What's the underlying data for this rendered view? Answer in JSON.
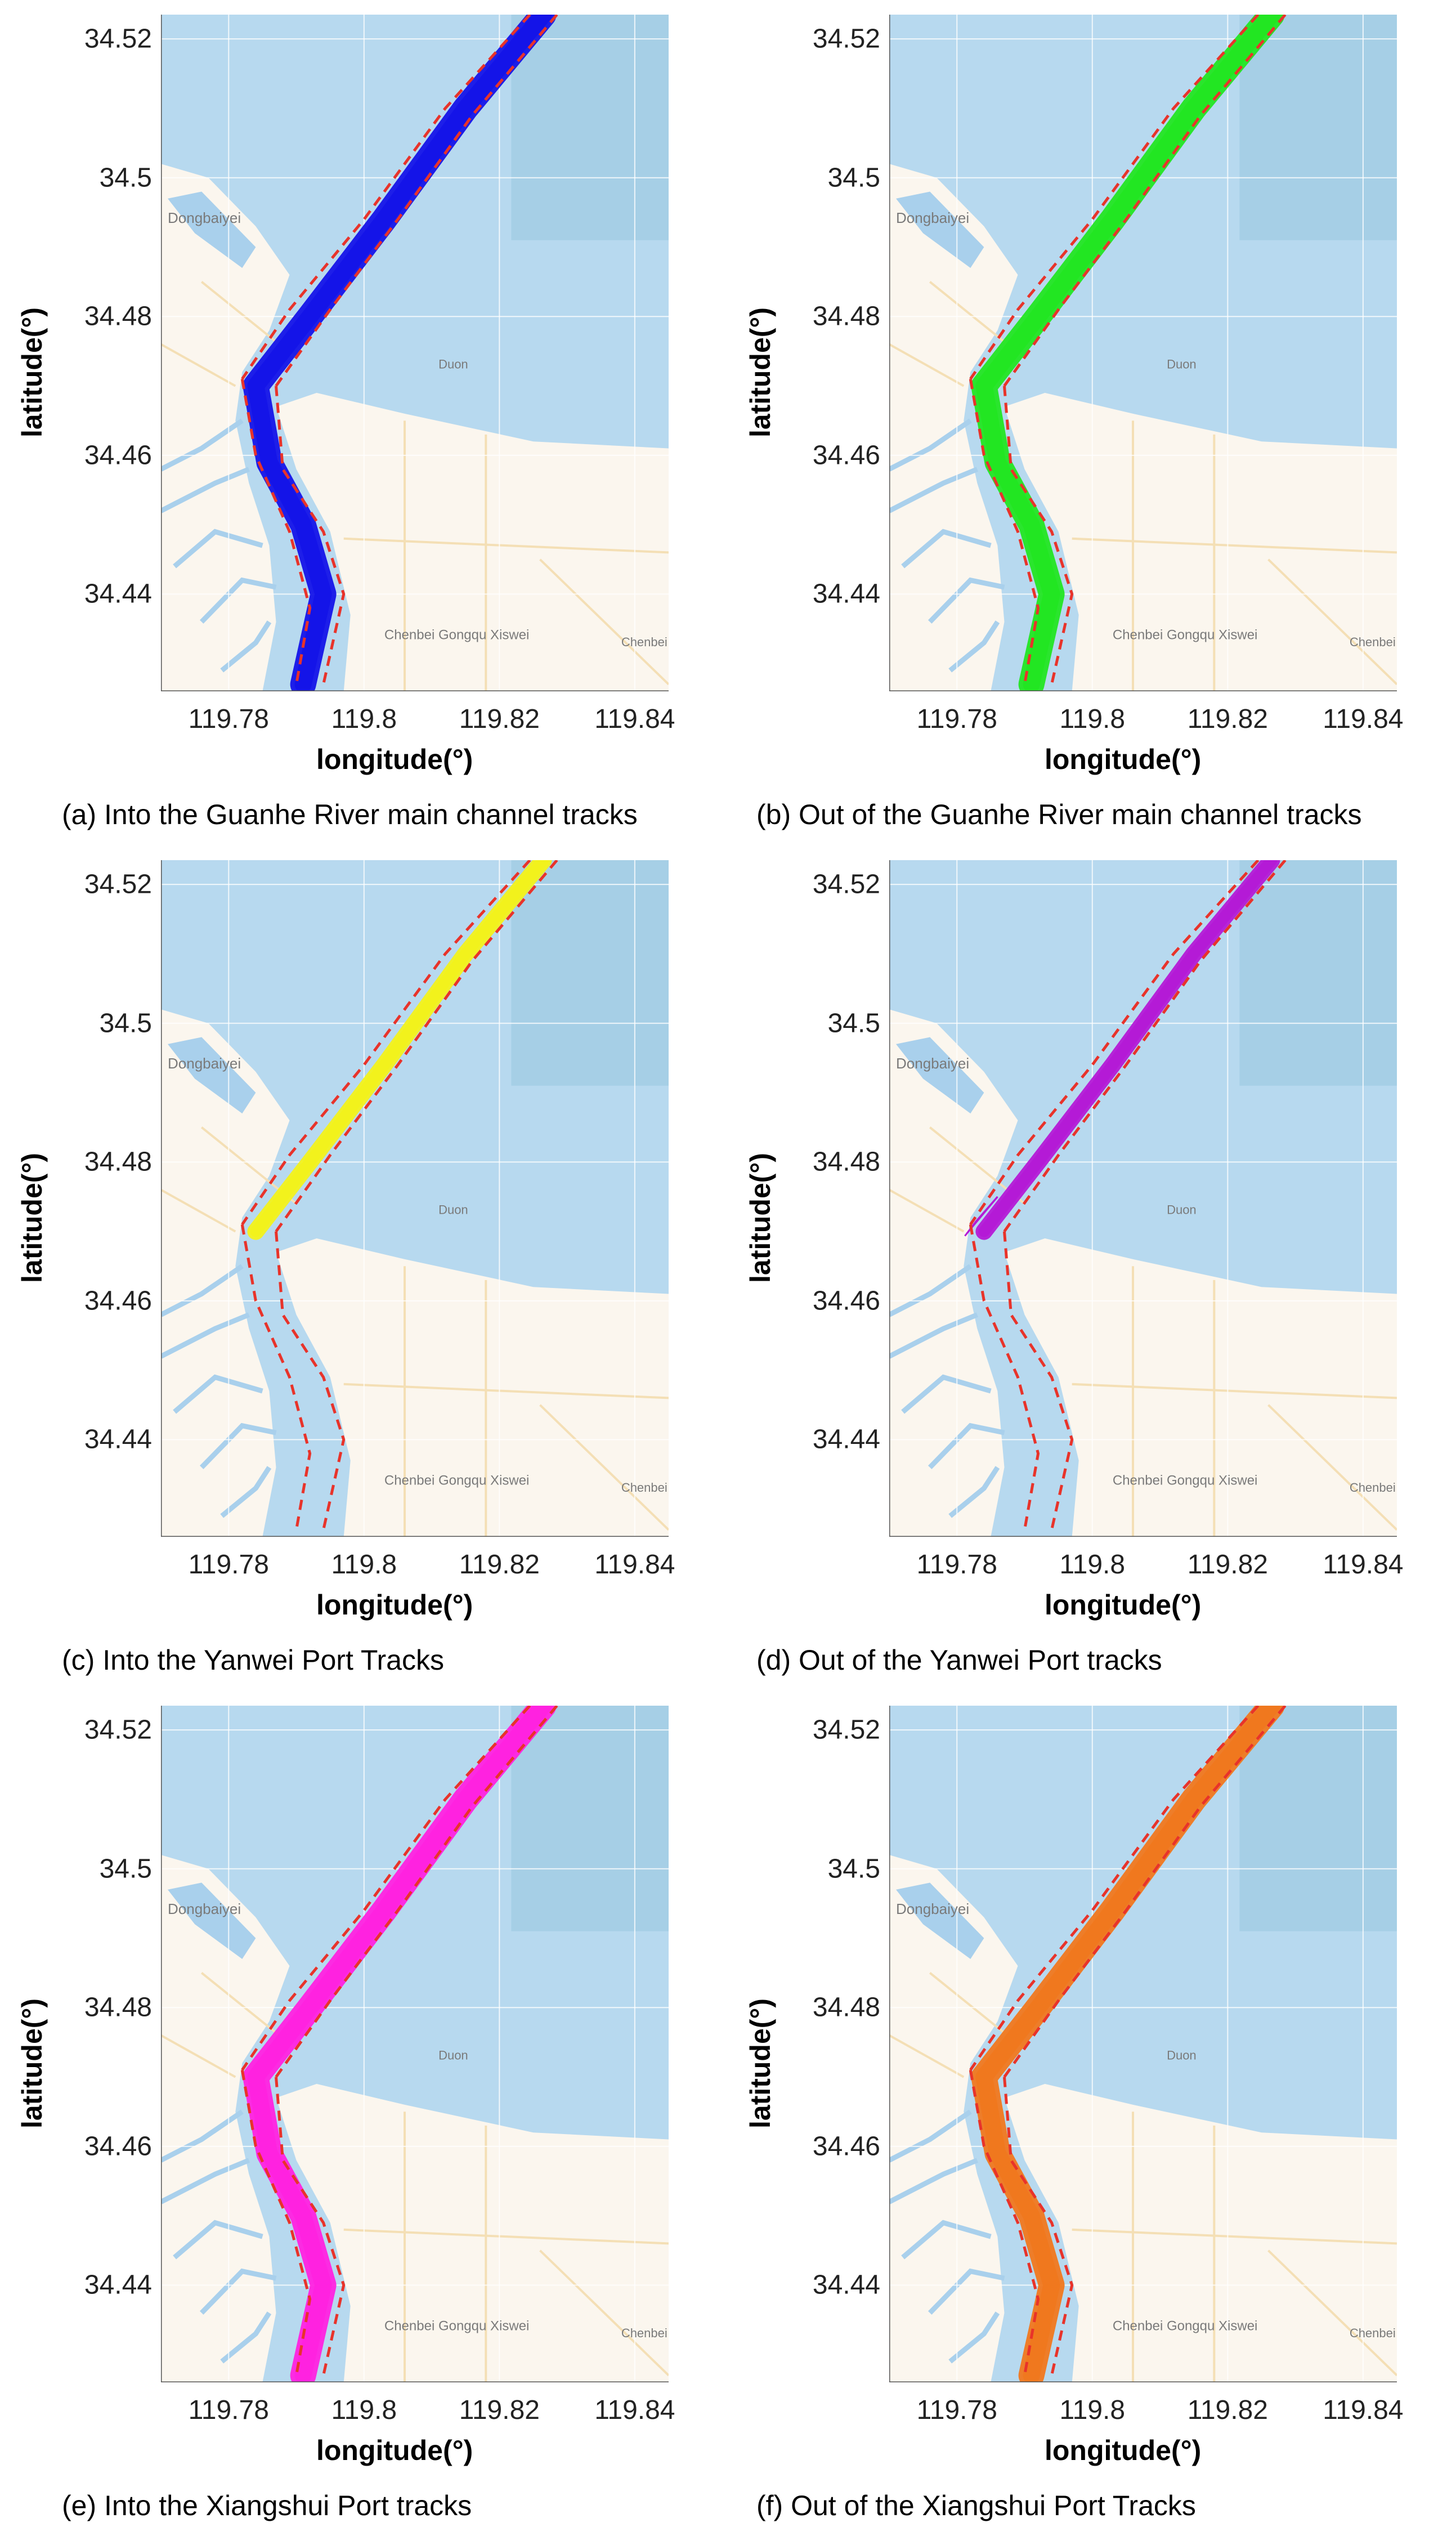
{
  "map_labels": {
    "dongbaiwei": "Dongbaiyei",
    "duon": "Duon",
    "chenbei": "Chenbei Gongqu Xiswei",
    "chenbei_short": "Chenbei Gor"
  },
  "colors": {
    "water": "#b7d9ef",
    "land": "#fbf6ee",
    "channel": "#a9d0ec",
    "road": "#f4dfb5",
    "grid": "#ffffff",
    "route_dash": "#e8332a"
  },
  "panels": [
    {
      "id": "a",
      "caption": "(a)   Into the Guanhe River main channel tracks",
      "xlabel": "longitude(°)",
      "ylabel": "latitude(°)",
      "xticks": [
        "119.78",
        "119.8",
        "119.82",
        "119.84"
      ],
      "yticks": [
        "34.52",
        "34.5",
        "34.48",
        "34.46",
        "34.44"
      ],
      "track_color": "#1414e8",
      "track": "full"
    },
    {
      "id": "b",
      "caption": "(b)   Out of the Guanhe River main channel tracks",
      "xlabel": "longitude(°)",
      "ylabel": "latitude(°)",
      "xticks": [
        "119.78",
        "119.8",
        "119.82",
        "119.84"
      ],
      "yticks": [
        "34.52",
        "34.5",
        "34.48",
        "34.46",
        "34.44"
      ],
      "track_color": "#22e622",
      "track": "full"
    },
    {
      "id": "c",
      "caption": "(c)   Into the Yanwei Port Tracks",
      "xlabel": "longitude(°)",
      "ylabel": "latitude(°)",
      "xticks": [
        "119.78",
        "119.8",
        "119.82",
        "119.84"
      ],
      "yticks": [
        "34.52",
        "34.5",
        "34.48",
        "34.46",
        "34.44"
      ],
      "track_color": "#f2f21c",
      "track": "upper"
    },
    {
      "id": "d",
      "caption": "(d)   Out of the Yanwei Port tracks",
      "xlabel": "longitude(°)",
      "ylabel": "latitude(°)",
      "xticks": [
        "119.78",
        "119.8",
        "119.82",
        "119.84"
      ],
      "yticks": [
        "34.52",
        "34.5",
        "34.48",
        "34.46",
        "34.44"
      ],
      "track_color": "#b41ad6",
      "track": "upper"
    },
    {
      "id": "e",
      "caption": "(e)   Into the Xiangshui Port tracks",
      "xlabel": "longitude(°)",
      "ylabel": "latitude(°)",
      "xticks": [
        "119.78",
        "119.8",
        "119.82",
        "119.84"
      ],
      "yticks": [
        "34.52",
        "34.5",
        "34.48",
        "34.46",
        "34.44"
      ],
      "track_color": "#ff22e0",
      "track": "full"
    },
    {
      "id": "f",
      "caption": "(f)   Out of the Xiangshui Port Tracks",
      "xlabel": "longitude(°)",
      "ylabel": "latitude(°)",
      "xticks": [
        "119.78",
        "119.8",
        "119.82",
        "119.84"
      ],
      "yticks": [
        "34.52",
        "34.5",
        "34.48",
        "34.46",
        "34.44"
      ],
      "track_color": "#f0781e",
      "track": "full"
    }
  ]
}
